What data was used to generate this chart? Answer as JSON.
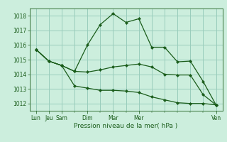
{
  "bg_color": "#cceedd",
  "grid_color": "#99ccbb",
  "line_color": "#1a5c1a",
  "marker_color": "#1a5c1a",
  "xlabel": "Pression niveau de la mer( hPa )",
  "xlabel_color": "#1a5c1a",
  "tick_color": "#1a5c1a",
  "ylim": [
    1011.5,
    1018.5
  ],
  "yticks": [
    1012,
    1013,
    1014,
    1015,
    1016,
    1017,
    1018
  ],
  "series": [
    [
      1015.7,
      1014.9,
      1014.6,
      1014.2,
      1016.0,
      1017.4,
      1018.15,
      1017.55,
      1017.8,
      1015.85,
      1015.85,
      1014.85,
      1014.9,
      1013.5,
      1011.9
    ],
    [
      1015.7,
      1014.9,
      1014.6,
      1014.2,
      1014.15,
      1014.3,
      1014.5,
      1014.6,
      1014.7,
      1014.5,
      1014.0,
      1013.95,
      1013.95,
      1012.6,
      1011.9
    ],
    [
      1015.7,
      1014.9,
      1014.6,
      1013.2,
      1013.05,
      1012.9,
      1012.9,
      1012.85,
      1012.75,
      1012.45,
      1012.25,
      1012.05,
      1012.0,
      1012.0,
      1011.9
    ]
  ],
  "x_positions": [
    0,
    1,
    2,
    3,
    4,
    5,
    6,
    7,
    8,
    9,
    10,
    11,
    12,
    13,
    14
  ],
  "major_xtick_positions": [
    0,
    1,
    2,
    4,
    6,
    8,
    14
  ],
  "major_xtick_labels": [
    "Lun",
    "Jeu",
    "Sam",
    "Dim",
    "Mar",
    "Mer",
    "Ven"
  ],
  "figsize": [
    3.2,
    2.0
  ],
  "dpi": 100
}
